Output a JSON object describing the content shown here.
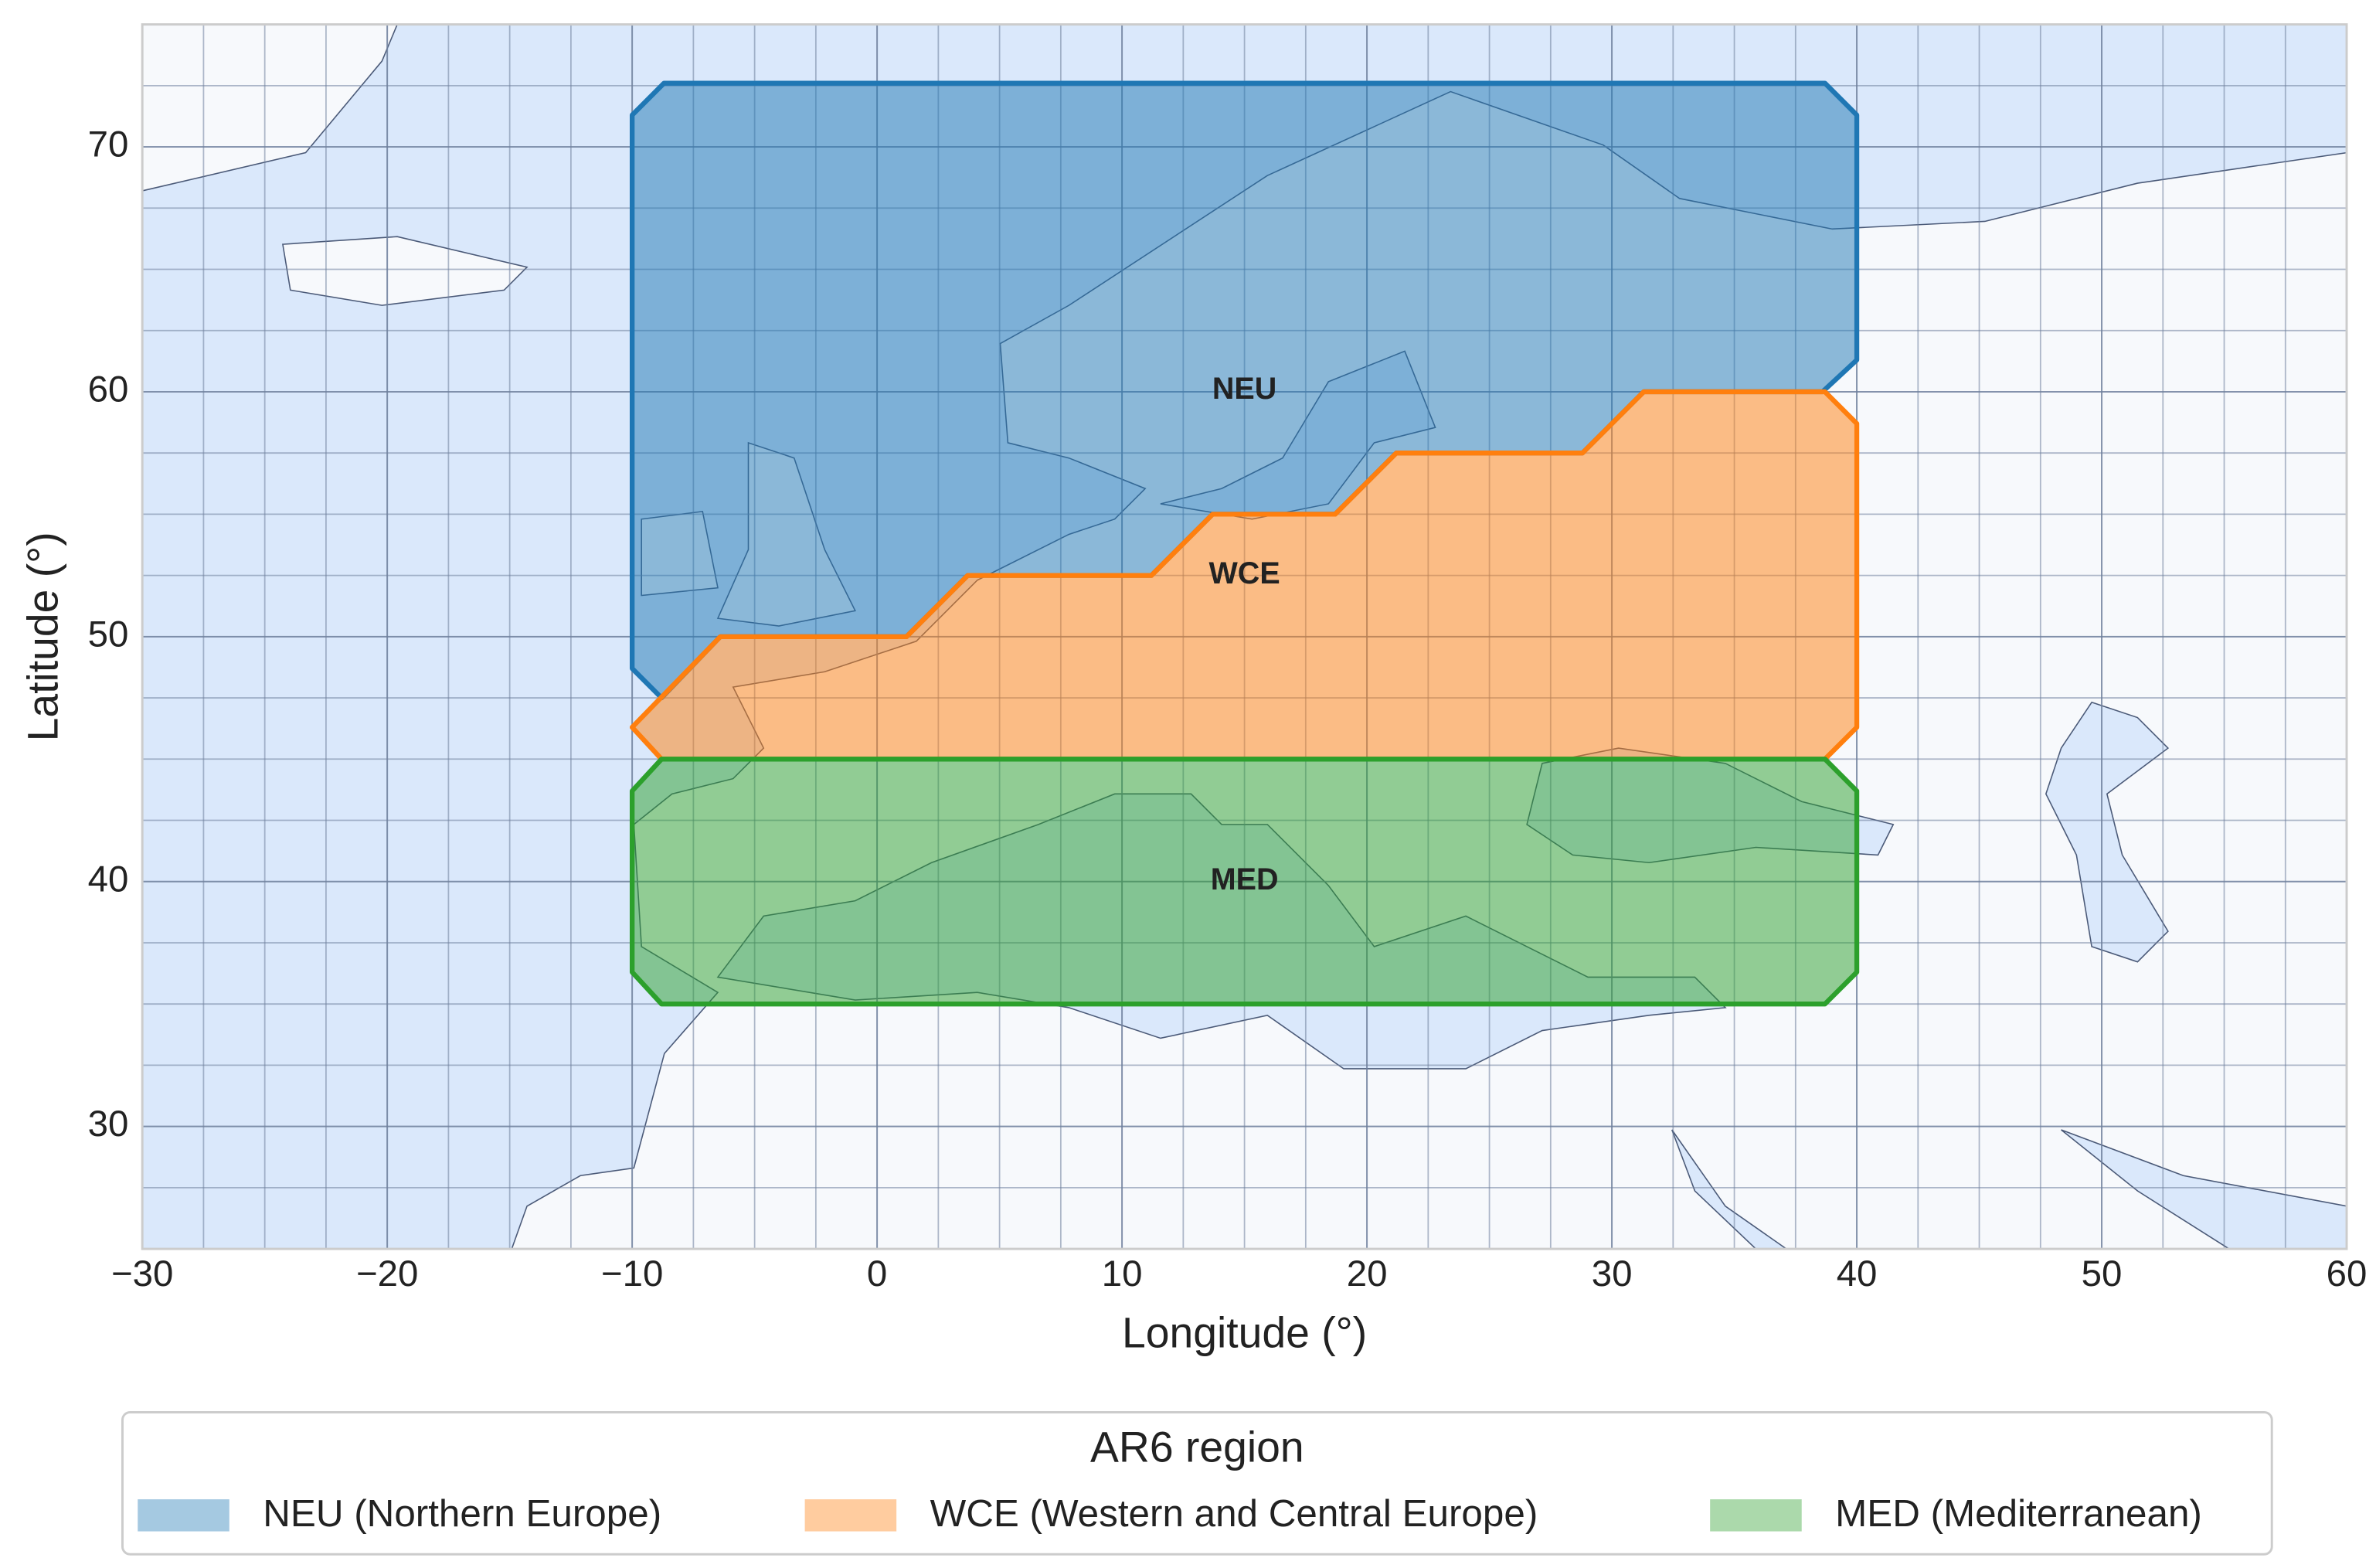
{
  "chart_data": {
    "type": "map",
    "xlabel": "Longitude (°)",
    "ylabel": "Latitude (°)",
    "xlim": [
      -30,
      60
    ],
    "ylim": [
      25,
      75
    ],
    "xticks": [
      {
        "value": -30,
        "label": "−30"
      },
      {
        "value": -20,
        "label": "−20"
      },
      {
        "value": -10,
        "label": "−10"
      },
      0,
      10,
      20,
      30,
      40,
      50,
      60
    ],
    "yticks": [
      30,
      40,
      50,
      60,
      70
    ],
    "grid_step": 2.5,
    "legend": {
      "title": "AR6 region",
      "position": "bottom"
    },
    "regions": [
      {
        "label": "NEU",
        "name": "NEU (Northern Europe)",
        "color": "#1f77b4",
        "polygon": [
          [
            -10,
            48.7
          ],
          [
            -10,
            71.3
          ],
          [
            -8.7,
            72.6
          ],
          [
            38.7,
            72.6
          ],
          [
            40,
            71.3
          ],
          [
            40,
            61.3
          ],
          [
            38.6,
            60
          ],
          [
            31.3,
            60
          ],
          [
            28.8,
            57.5
          ],
          [
            21.2,
            57.5
          ],
          [
            18.7,
            55
          ],
          [
            13.7,
            55
          ],
          [
            11.2,
            52.5
          ],
          [
            3.7,
            52.5
          ],
          [
            1.2,
            50
          ],
          [
            -6.4,
            50
          ],
          [
            -8.8,
            47.5
          ]
        ]
      },
      {
        "label": "WCE",
        "name": "WCE (Western and Central Europe)",
        "color": "#ff7f0e",
        "polygon": [
          [
            -10,
            46.3
          ],
          [
            -6.4,
            50
          ],
          [
            1.2,
            50
          ],
          [
            3.7,
            52.5
          ],
          [
            11.2,
            52.5
          ],
          [
            13.7,
            55
          ],
          [
            18.7,
            55
          ],
          [
            21.2,
            57.5
          ],
          [
            28.8,
            57.5
          ],
          [
            31.3,
            60
          ],
          [
            38.7,
            60
          ],
          [
            40,
            58.7
          ],
          [
            40,
            46.3
          ],
          [
            38.7,
            45
          ],
          [
            -8.8,
            45
          ]
        ]
      },
      {
        "label": "MED",
        "name": "MED (Mediterranean)",
        "color": "#2ca02c",
        "polygon": [
          [
            -10,
            43.7
          ],
          [
            -8.8,
            45
          ],
          [
            38.7,
            45
          ],
          [
            40,
            43.7
          ],
          [
            40,
            36.3
          ],
          [
            38.7,
            35
          ],
          [
            -8.8,
            35
          ],
          [
            -10,
            36.3
          ]
        ]
      }
    ]
  }
}
